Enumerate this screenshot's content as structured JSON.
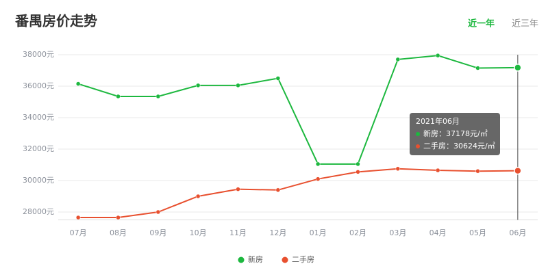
{
  "header": {
    "title": "番禺房价走势",
    "tabs": [
      "近一年",
      "近三年"
    ],
    "active_tab": 0
  },
  "chart_data": {
    "type": "line",
    "categories": [
      "07月",
      "08月",
      "09月",
      "10月",
      "11月",
      "12月",
      "01月",
      "02月",
      "03月",
      "04月",
      "05月",
      "06月"
    ],
    "series": [
      {
        "name": "新房",
        "color": "#1db83f",
        "values": [
          36150,
          35350,
          35350,
          36050,
          36050,
          36500,
          31050,
          31050,
          37700,
          37950,
          37150,
          37178
        ]
      },
      {
        "name": "二手房",
        "color": "#e8502f",
        "values": [
          27650,
          27650,
          28000,
          29000,
          29450,
          29400,
          30100,
          30550,
          30750,
          30650,
          30600,
          30624
        ]
      }
    ],
    "ylim": [
      27500,
      38000
    ],
    "yticks": [
      {
        "value": 28000,
        "label": "28000元"
      },
      {
        "value": 30000,
        "label": "30000元"
      },
      {
        "value": 32000,
        "label": "32000元"
      },
      {
        "value": 34000,
        "label": "34000元"
      },
      {
        "value": 36000,
        "label": "36000元"
      },
      {
        "value": 38000,
        "label": "38000元"
      }
    ],
    "grid": true,
    "legend": "bottom",
    "tooltip": {
      "index": 11,
      "title": "2021年06月",
      "lines": [
        "新房：37178元/㎡",
        "二手房：30624元/㎡"
      ]
    }
  }
}
